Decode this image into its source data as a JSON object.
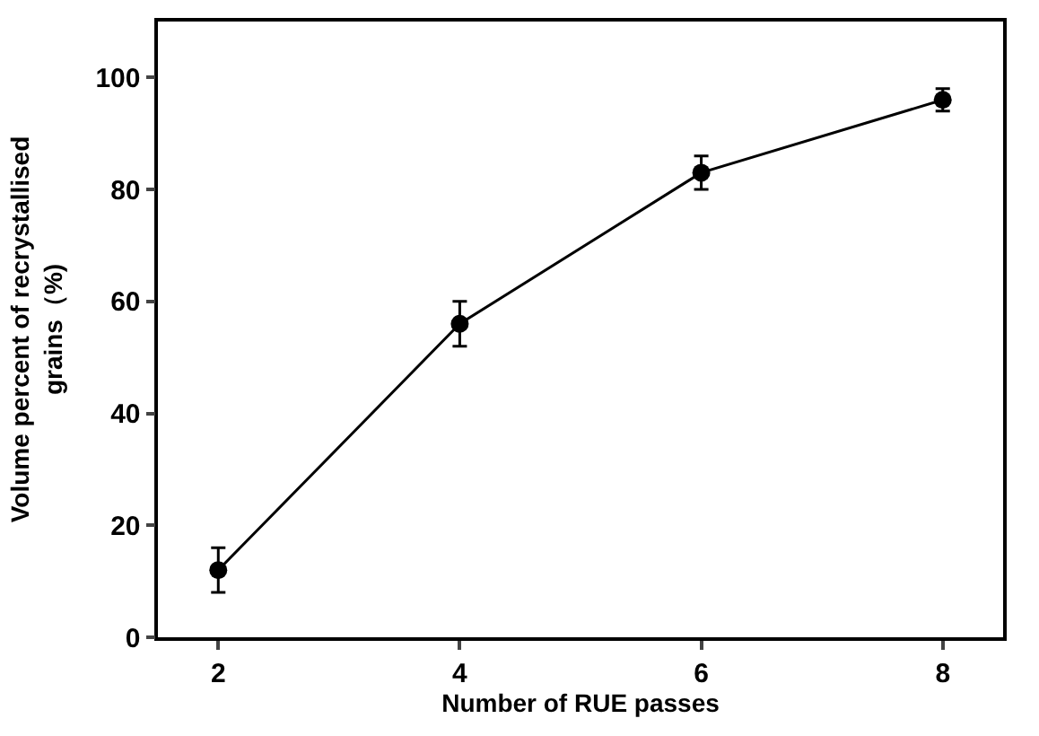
{
  "chart_data": {
    "type": "line",
    "xlabel": "Number of RUE passes",
    "ylabel": "Volume percent of recrystallised\ngrains（%)",
    "x": [
      2,
      4,
      6,
      8
    ],
    "series": [
      {
        "color": "#000000",
        "values": [
          12,
          56,
          83,
          96
        ],
        "errors": [
          4,
          4,
          3,
          2
        ]
      }
    ],
    "xlim": [
      1.5,
      8.5
    ],
    "xticks": [
      2,
      4,
      6,
      8
    ],
    "ylim": [
      0,
      110
    ],
    "yticks": [
      0,
      20,
      40,
      60,
      80,
      100
    ],
    "marker": "circle",
    "line_style": "solid"
  }
}
